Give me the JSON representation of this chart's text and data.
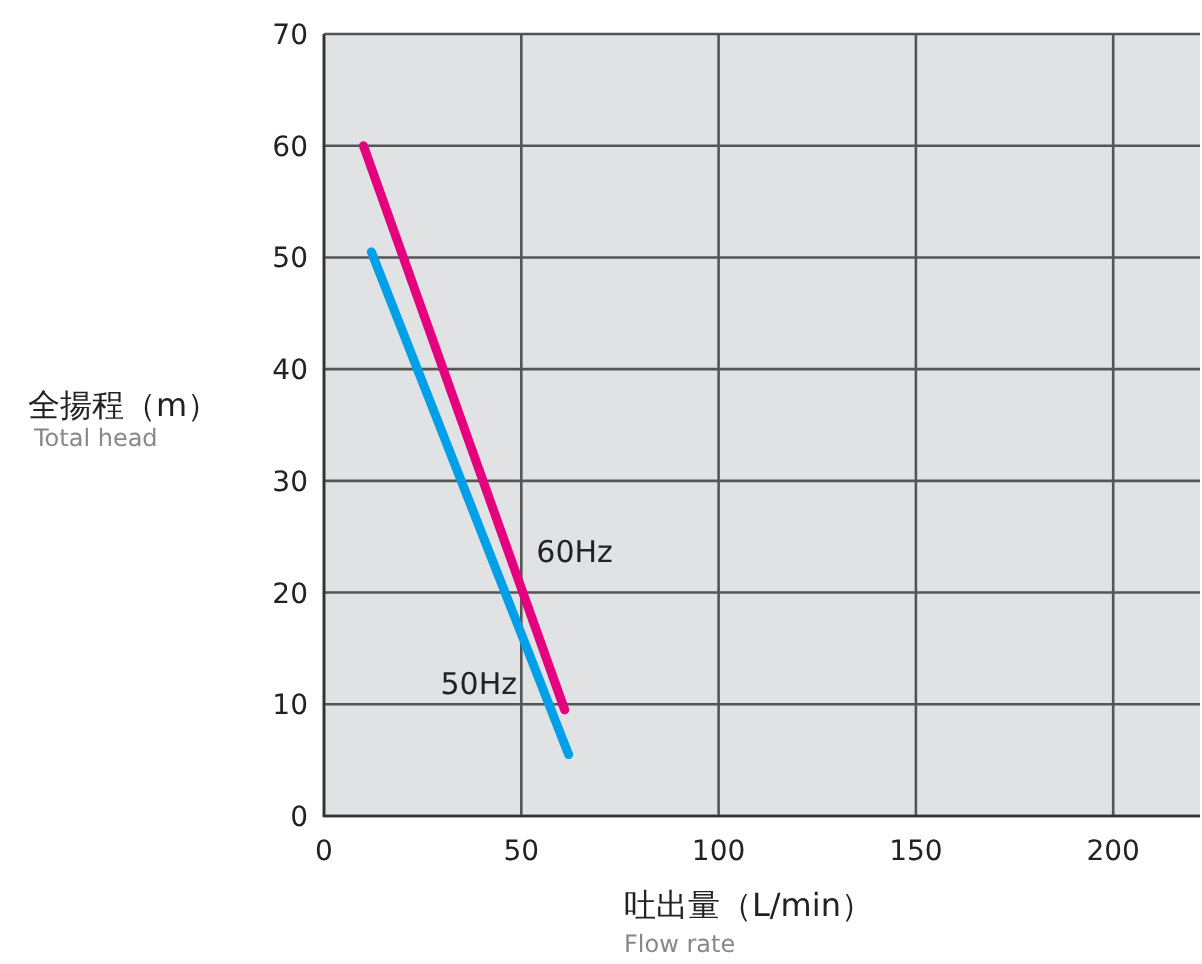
{
  "chart_data": {
    "type": "line",
    "xlabel": "吐出量（L/min）",
    "ylabel": "全揚程（m）",
    "xlim": [
      0,
      222
    ],
    "ylim": [
      0,
      70
    ],
    "xticks": [
      0,
      50,
      100,
      150,
      200
    ],
    "yticks": [
      0,
      10,
      20,
      30,
      40,
      50,
      60,
      70
    ],
    "grid": true,
    "marker": "none",
    "line_style": "solid",
    "series": [
      {
        "name": "60Hz",
        "color": "#e4007f",
        "x": [
          10,
          61
        ],
        "values": [
          60,
          9.5
        ]
      },
      {
        "name": "50Hz",
        "color": "#00a0e9",
        "x": [
          12,
          62
        ],
        "values": [
          50.5,
          5.5
        ]
      }
    ],
    "annotations": [
      "Total head",
      "Flow rate"
    ]
  }
}
